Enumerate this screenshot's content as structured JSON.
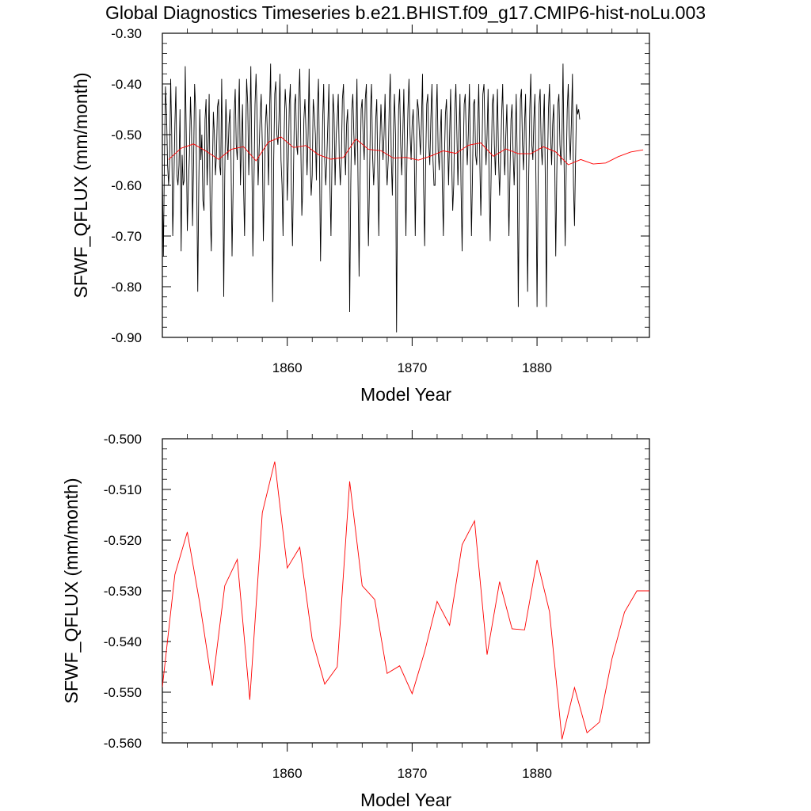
{
  "title": "Global Diagnostics Timeseries b.e21.BHIST.f09_g17.CMIP6-hist-noLu.003",
  "colors": {
    "monthly": "#000000",
    "annual": "#ff0000",
    "axes": "#000000"
  },
  "chart_data": [
    {
      "type": "line",
      "xlabel": "Model Year",
      "ylabel": "SFWF_QFLUX (mm/month)",
      "xlim": [
        1850.0,
        1889.0
      ],
      "ylim": [
        -0.9,
        -0.3
      ],
      "xticks": [
        1860,
        1870,
        1880
      ],
      "xtick_labels": [
        "1860",
        "1870",
        "1880"
      ],
      "yticks": [
        -0.3,
        -0.4,
        -0.5,
        -0.6,
        -0.7,
        -0.8,
        -0.9
      ],
      "ytick_labels": [
        "-0.30",
        "-0.40",
        "-0.50",
        "-0.60",
        "-0.70",
        "-0.80",
        "-0.90"
      ],
      "grid": false,
      "series": [
        {
          "key": "monthly",
          "color": "#000000",
          "x_start": 1850.0,
          "x_step": 0.0833333,
          "values": [
            -0.58,
            -0.74,
            -0.55,
            -0.405,
            -0.46,
            -0.56,
            -0.6,
            -0.55,
            -0.39,
            -0.5,
            -0.7,
            -0.6,
            -0.48,
            -0.405,
            -0.58,
            -0.6,
            -0.56,
            -0.45,
            -0.73,
            -0.54,
            -0.6,
            -0.59,
            -0.365,
            -0.5,
            -0.69,
            -0.6,
            -0.54,
            -0.425,
            -0.49,
            -0.68,
            -0.56,
            -0.4,
            -0.45,
            -0.6,
            -0.81,
            -0.6,
            -0.45,
            -0.55,
            -0.5,
            -0.63,
            -0.65,
            -0.47,
            -0.43,
            -0.6,
            -0.52,
            -0.42,
            -0.65,
            -0.73,
            -0.58,
            -0.455,
            -0.5,
            -0.58,
            -0.54,
            -0.445,
            -0.43,
            -0.56,
            -0.58,
            -0.39,
            -0.57,
            -0.82,
            -0.58,
            -0.43,
            -0.5,
            -0.55,
            -0.48,
            -0.45,
            -0.55,
            -0.74,
            -0.6,
            -0.46,
            -0.41,
            -0.52,
            -0.55,
            -0.47,
            -0.39,
            -0.6,
            -0.52,
            -0.44,
            -0.6,
            -0.7,
            -0.53,
            -0.39,
            -0.44,
            -0.58,
            -0.5,
            -0.365,
            -0.55,
            -0.74,
            -0.6,
            -0.44,
            -0.38,
            -0.46,
            -0.6,
            -0.53,
            -0.46,
            -0.42,
            -0.52,
            -0.71,
            -0.6,
            -0.48,
            -0.44,
            -0.5,
            -0.6,
            -0.45,
            -0.36,
            -0.6,
            -0.83,
            -0.55,
            -0.42,
            -0.395,
            -0.5,
            -0.52,
            -0.47,
            -0.38,
            -0.55,
            -0.6,
            -0.7,
            -0.5,
            -0.41,
            -0.45,
            -0.63,
            -0.55,
            -0.44,
            -0.4,
            -0.61,
            -0.72,
            -0.57,
            -0.44,
            -0.42,
            -0.52,
            -0.54,
            -0.43,
            -0.37,
            -0.52,
            -0.66,
            -0.6,
            -0.47,
            -0.43,
            -0.49,
            -0.58,
            -0.5,
            -0.37,
            -0.55,
            -0.62,
            -0.58,
            -0.43,
            -0.46,
            -0.5,
            -0.59,
            -0.45,
            -0.39,
            -0.55,
            -0.75,
            -0.6,
            -0.47,
            -0.4,
            -0.55,
            -0.6,
            -0.55,
            -0.48,
            -0.4,
            -0.6,
            -0.7,
            -0.55,
            -0.42,
            -0.46,
            -0.6,
            -0.5,
            -0.47,
            -0.42,
            -0.55,
            -0.6,
            -0.55,
            -0.43,
            -0.4,
            -0.52,
            -0.58,
            -0.48,
            -0.45,
            -0.55,
            -0.85,
            -0.6,
            -0.45,
            -0.42,
            -0.5,
            -0.56,
            -0.5,
            -0.39,
            -0.6,
            -0.78,
            -0.58,
            -0.45,
            -0.43,
            -0.51,
            -0.55,
            -0.43,
            -0.4,
            -0.58,
            -0.72,
            -0.6,
            -0.45,
            -0.4,
            -0.54,
            -0.6,
            -0.55,
            -0.47,
            -0.43,
            -0.57,
            -0.7,
            -0.52,
            -0.44,
            -0.5,
            -0.55,
            -0.5,
            -0.42,
            -0.55,
            -0.6,
            -0.55,
            -0.44,
            -0.38,
            -0.55,
            -0.62,
            -0.5,
            -0.42,
            -0.5,
            -0.89,
            -0.6,
            -0.45,
            -0.41,
            -0.52,
            -0.58,
            -0.5,
            -0.41,
            -0.55,
            -0.7,
            -0.55,
            -0.45,
            -0.39,
            -0.5,
            -0.55,
            -0.48,
            -0.45,
            -0.52,
            -0.7,
            -0.55,
            -0.43,
            -0.45,
            -0.5,
            -0.54,
            -0.47,
            -0.38,
            -0.6,
            -0.72,
            -0.55,
            -0.44,
            -0.42,
            -0.52,
            -0.56,
            -0.47,
            -0.4,
            -0.55,
            -0.6,
            -0.6,
            -0.47,
            -0.4,
            -0.53,
            -0.57,
            -0.5,
            -0.45,
            -0.6,
            -0.7,
            -0.55,
            -0.46,
            -0.43,
            -0.51,
            -0.6,
            -0.5,
            -0.41,
            -0.55,
            -0.65,
            -0.6,
            -0.45,
            -0.4,
            -0.5,
            -0.6,
            -0.5,
            -0.42,
            -0.6,
            -0.73,
            -0.55,
            -0.44,
            -0.42,
            -0.5,
            -0.56,
            -0.5,
            -0.4,
            -0.55,
            -0.7,
            -0.58,
            -0.44,
            -0.43,
            -0.54,
            -0.56,
            -0.48,
            -0.4,
            -0.55,
            -0.66,
            -0.55,
            -0.42,
            -0.4,
            -0.5,
            -0.56,
            -0.5,
            -0.41,
            -0.6,
            -0.71,
            -0.56,
            -0.44,
            -0.42,
            -0.52,
            -0.58,
            -0.5,
            -0.41,
            -0.55,
            -0.62,
            -0.55,
            -0.46,
            -0.4,
            -0.52,
            -0.58,
            -0.5,
            -0.44,
            -0.58,
            -0.7,
            -0.58,
            -0.47,
            -0.44,
            -0.54,
            -0.6,
            -0.52,
            -0.42,
            -0.55,
            -0.84,
            -0.6,
            -0.43,
            -0.41,
            -0.52,
            -0.57,
            -0.48,
            -0.42,
            -0.6,
            -0.81,
            -0.58,
            -0.45,
            -0.38,
            -0.52,
            -0.55,
            -0.47,
            -0.42,
            -0.6,
            -0.84,
            -0.6,
            -0.44,
            -0.41,
            -0.52,
            -0.56,
            -0.48,
            -0.42,
            -0.6,
            -0.84,
            -0.57,
            -0.45,
            -0.4,
            -0.5,
            -0.56,
            -0.48,
            -0.44,
            -0.55,
            -0.74,
            -0.58,
            -0.44,
            -0.42,
            -0.52,
            -0.56,
            -0.5,
            -0.36,
            -0.55,
            -0.72,
            -0.57,
            -0.45,
            -0.4,
            -0.5,
            -0.55,
            -0.48,
            -0.38,
            -0.6,
            -0.68,
            -0.55,
            -0.44,
            -0.46,
            -0.45,
            -0.47
          ]
        },
        {
          "key": "annual",
          "color": "#ff0000",
          "x": [
            1850.5,
            1851.5,
            1852.5,
            1853.5,
            1854.5,
            1855.5,
            1856.5,
            1857.5,
            1858.5,
            1859.5,
            1860.5,
            1861.5,
            1862.5,
            1863.5,
            1864.5,
            1865.5,
            1866.5,
            1867.5,
            1868.5,
            1869.5,
            1870.5,
            1871.5,
            1872.5,
            1873.5,
            1874.5,
            1875.5,
            1876.5,
            1877.5,
            1878.5,
            1879.5,
            1880.5,
            1881.5,
            1882.5,
            1883.5,
            1884.5,
            1885.5,
            1886.5,
            1887.5,
            1888.5
          ],
          "values": [
            -0.549,
            -0.5268,
            -0.5184,
            -0.5325,
            -0.5487,
            -0.529,
            -0.5238,
            -0.5515,
            -0.5146,
            -0.5045,
            -0.5255,
            -0.5214,
            -0.5396,
            -0.5484,
            -0.545,
            -0.5084,
            -0.529,
            -0.5317,
            -0.5463,
            -0.5448,
            -0.5503,
            -0.542,
            -0.5321,
            -0.5368,
            -0.5209,
            -0.5162,
            -0.5426,
            -0.5282,
            -0.5375,
            -0.5377,
            -0.5239,
            -0.5341,
            -0.5593,
            -0.5491,
            -0.558,
            -0.5559,
            -0.5434,
            -0.5342,
            -0.53
          ]
        }
      ]
    },
    {
      "type": "line",
      "xlabel": "Model Year",
      "ylabel": "SFWF_QFLUX (mm/month)",
      "xlim": [
        1850.0,
        1889.0
      ],
      "ylim": [
        -0.56,
        -0.5
      ],
      "xticks": [
        1860,
        1870,
        1880
      ],
      "xtick_labels": [
        "1860",
        "1870",
        "1880"
      ],
      "yticks": [
        -0.5,
        -0.51,
        -0.52,
        -0.53,
        -0.54,
        -0.55,
        -0.56
      ],
      "ytick_labels": [
        "-0.500",
        "-0.510",
        "-0.520",
        "-0.530",
        "-0.540",
        "-0.550",
        "-0.560"
      ],
      "grid": false,
      "series": [
        {
          "key": "annual",
          "color": "#ff0000",
          "x": [
            1850.0,
            1851.0,
            1852.0,
            1853.0,
            1854.0,
            1855.0,
            1856.0,
            1857.0,
            1858.0,
            1859.0,
            1860.0,
            1861.0,
            1862.0,
            1863.0,
            1864.0,
            1865.0,
            1866.0,
            1867.0,
            1868.0,
            1869.0,
            1870.0,
            1871.0,
            1872.0,
            1873.0,
            1874.0,
            1875.0,
            1876.0,
            1877.0,
            1878.0,
            1879.0,
            1880.0,
            1881.0,
            1882.0,
            1883.0,
            1884.0,
            1885.0,
            1886.0,
            1887.0,
            1888.0,
            1889.0
          ],
          "values": [
            -0.549,
            -0.5268,
            -0.5184,
            -0.5325,
            -0.5487,
            -0.529,
            -0.5238,
            -0.5515,
            -0.5146,
            -0.5045,
            -0.5255,
            -0.5214,
            -0.5396,
            -0.5484,
            -0.545,
            -0.5084,
            -0.529,
            -0.5317,
            -0.5463,
            -0.5448,
            -0.5503,
            -0.542,
            -0.5321,
            -0.5368,
            -0.5209,
            -0.5162,
            -0.5426,
            -0.5282,
            -0.5375,
            -0.5377,
            -0.5239,
            -0.5341,
            -0.5593,
            -0.5491,
            -0.558,
            -0.5559,
            -0.5434,
            -0.5342,
            -0.53,
            -0.53
          ]
        }
      ]
    }
  ]
}
